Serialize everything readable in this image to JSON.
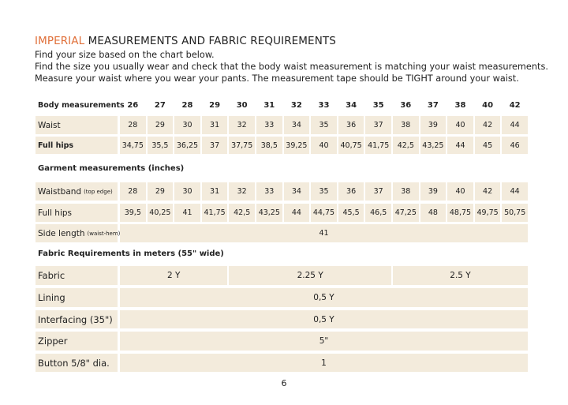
{
  "header": {
    "title_accent": "IMPERIAL",
    "title": "MEASUREMENTS AND FABRIC REQUIREMENTS",
    "lines": [
      "Find your size based on the chart below.",
      "Find the size you usually wear and check that the body waist measurement is matching your waist measurements.",
      "Measure your waist where you wear your pants. The measurement tape should be TIGHT around your waist."
    ]
  },
  "table": {
    "rows": [
      {
        "label": "Body measurements",
        "cells": [
          "26",
          "27",
          "28",
          "29",
          "30",
          "31",
          "32",
          "33",
          "34",
          "35",
          "36",
          "37",
          "38",
          "40",
          "42"
        ]
      },
      {
        "label": "Waist",
        "cells": [
          "28",
          "29",
          "30",
          "31",
          "32",
          "33",
          "34",
          "35",
          "36",
          "37",
          "38",
          "39",
          "40",
          "42",
          "44"
        ]
      },
      {
        "label": "Full hips",
        "cells": [
          "34,75",
          "35,5",
          "36,25",
          "37",
          "37,75",
          "38,5",
          "39,25",
          "40",
          "40,75",
          "41,75",
          "42,5",
          "43,25",
          "44",
          "45",
          "46"
        ]
      },
      {
        "heading": "Garment measurements (inches)"
      },
      {
        "label": "Waistband",
        "note": "(top edge)",
        "cells": [
          "28",
          "29",
          "30",
          "31",
          "32",
          "33",
          "34",
          "35",
          "36",
          "37",
          "38",
          "39",
          "40",
          "42",
          "44"
        ]
      },
      {
        "label": "Full hips",
        "cells": [
          "39,5",
          "40,25",
          "41",
          "41,75",
          "42,5",
          "43,25",
          "44",
          "44,75",
          "45,5",
          "46,5",
          "47,25",
          "48",
          "48,75",
          "49,75",
          "50,75"
        ]
      },
      {
        "label": "Side length",
        "note": "(waist-hem)",
        "cells": [
          "41"
        ]
      },
      {
        "heading": "Fabric Requirements in meters (55\" wide)"
      },
      {
        "label": "Fabric",
        "cells": [
          "2 Y",
          "2.25 Y",
          "2.5 Y"
        ]
      },
      {
        "label": "Lining",
        "cells": [
          "0,5 Y"
        ]
      },
      {
        "label": "Interfacing (35\")",
        "cells": [
          "0,5 Y"
        ]
      },
      {
        "label": "Zipper",
        "cells": [
          "5\""
        ]
      },
      {
        "label": "Button 5/8\" dia.",
        "cells": [
          "1"
        ]
      }
    ]
  },
  "footer": {
    "page": "6"
  }
}
